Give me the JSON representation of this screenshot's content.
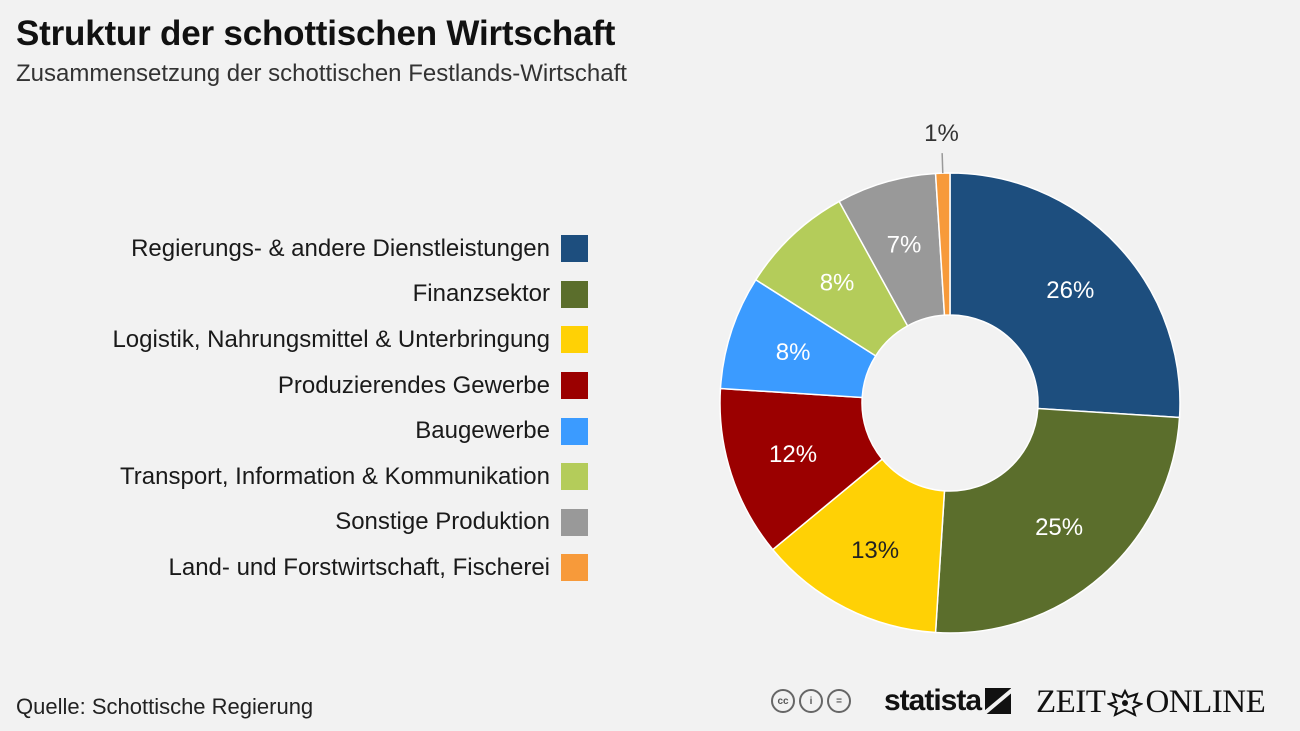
{
  "header": {
    "title": "Struktur der schottischen Wirtschaft",
    "subtitle": "Zusammensetzung der schottischen Festlands-Wirtschaft"
  },
  "chart_data": {
    "type": "pie",
    "donut": true,
    "title": "Struktur der schottischen Wirtschaft",
    "subtitle": "Zusammensetzung der schottischen Festlands-Wirtschaft",
    "legend_position": "left",
    "slices": [
      {
        "label": "Regierungs- & andere Dienstleistungen",
        "value": 26,
        "display": "26%",
        "color": "#1d4e7e",
        "text_color": "#ffffff"
      },
      {
        "label": "Finanzsektor",
        "value": 25,
        "display": "25%",
        "color": "#5b6e2c",
        "text_color": "#ffffff"
      },
      {
        "label": "Logistik, Nahrungsmittel & Unterbringung",
        "value": 13,
        "display": "13%",
        "color": "#ffd105",
        "text_color": "#222222"
      },
      {
        "label": "Produzierendes Gewerbe",
        "value": 12,
        "display": "12%",
        "color": "#9b0000",
        "text_color": "#ffffff"
      },
      {
        "label": "Baugewerbe",
        "value": 8,
        "display": "8%",
        "color": "#3b9bff",
        "text_color": "#ffffff"
      },
      {
        "label": "Transport, Information & Kommunikation",
        "value": 8,
        "display": "8%",
        "color": "#b4cc5a",
        "text_color": "#ffffff"
      },
      {
        "label": "Sonstige Produktion",
        "value": 7,
        "display": "7%",
        "color": "#999999",
        "text_color": "#ffffff"
      },
      {
        "label": "Land- und Forstwirtschaft, Fischerei",
        "value": 1,
        "display": "1%",
        "color": "#f79a3a",
        "text_color": "#333333"
      }
    ]
  },
  "footer": {
    "source": "Quelle: Schottische Regierung",
    "cc_icons": [
      "cc-icon",
      "by-icon",
      "nd-icon"
    ],
    "brand_statista": "statista",
    "brand_zeit_left": "ZEIT",
    "brand_zeit_right": "ONLINE"
  }
}
